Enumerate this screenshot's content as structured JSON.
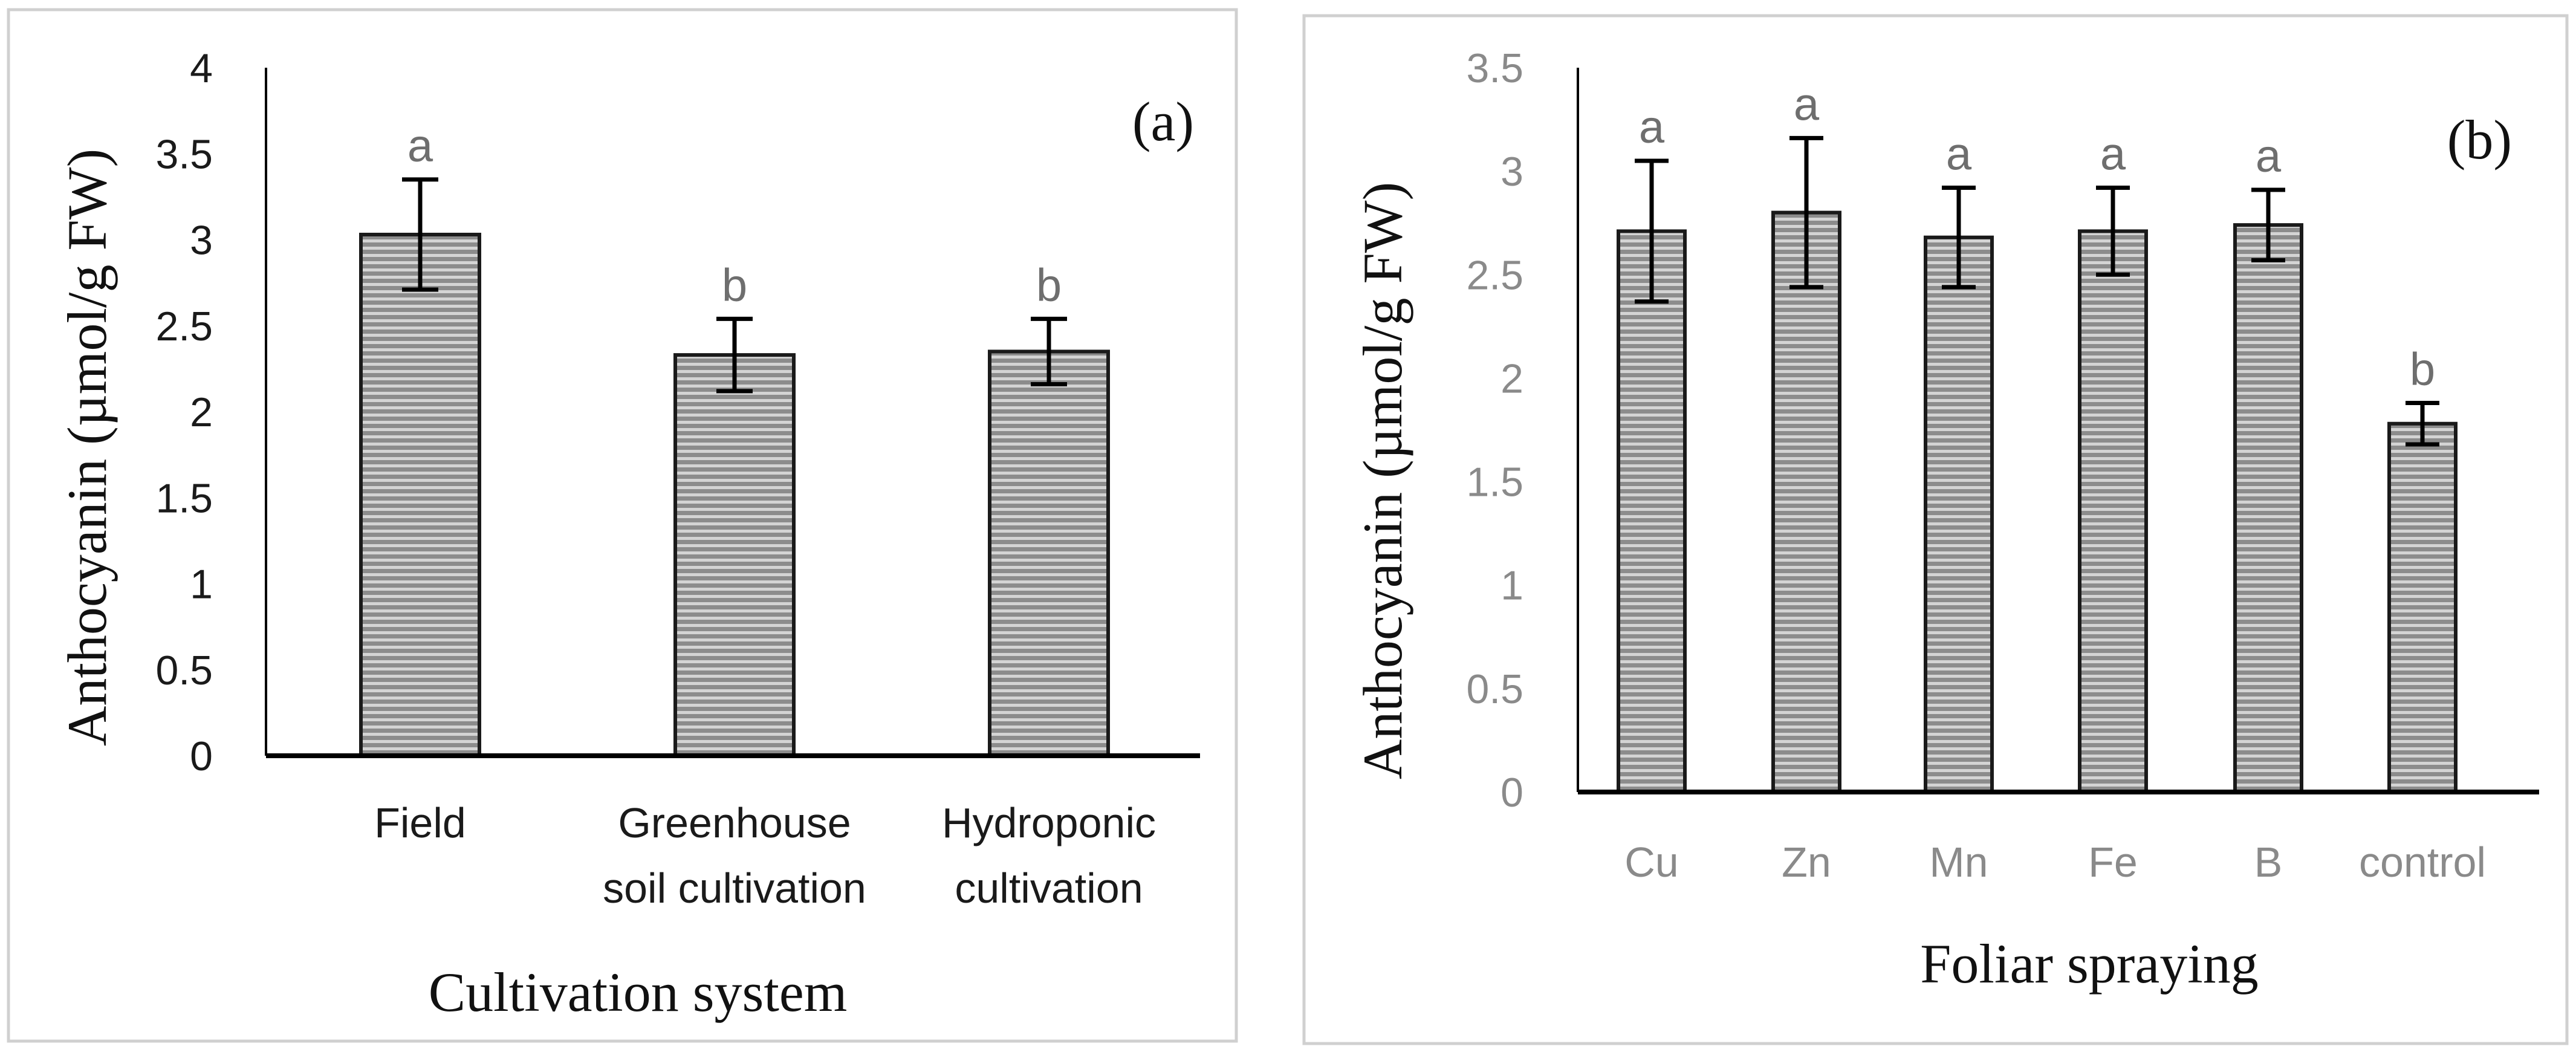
{
  "chart_data": [
    {
      "type": "bar",
      "panel_label": "(a)",
      "title": "",
      "xlabel": "Cultivation system",
      "ylabel": "Anthocyanin (µmol/g FW)",
      "ylim": [
        0,
        4
      ],
      "yticks": [
        "0",
        "0.5",
        "1",
        "1.5",
        "2",
        "2.5",
        "3",
        "3.5",
        "4"
      ],
      "categories": [
        [
          "Field"
        ],
        [
          "Greenhouse",
          "soil cultivation"
        ],
        [
          "Hydroponic",
          "cultivation"
        ]
      ],
      "values": [
        3.03,
        2.33,
        2.35
      ],
      "errors": [
        0.32,
        0.21,
        0.19
      ],
      "significance": [
        "a",
        "b",
        "b"
      ],
      "colors": {
        "bar_fill": "#8c8c8c",
        "bar_line": "#cfcfcf",
        "bar_edge": "#1a1a1a",
        "axis": "#000000",
        "border": "#d0d0d0"
      }
    },
    {
      "type": "bar",
      "panel_label": "(b)",
      "title": "",
      "xlabel": "Foliar spraying",
      "ylabel": "Anthocyanin (µmol/g FW)",
      "ylim": [
        0,
        3.5
      ],
      "yticks": [
        "0",
        "0.5",
        "1",
        "1.5",
        "2",
        "2.5",
        "3",
        "3.5"
      ],
      "categories": [
        [
          "Cu"
        ],
        [
          "Zn"
        ],
        [
          "Mn"
        ],
        [
          "Fe"
        ],
        [
          "B"
        ],
        [
          "control"
        ]
      ],
      "values": [
        2.71,
        2.8,
        2.68,
        2.71,
        2.74,
        1.78
      ],
      "errors": [
        0.34,
        0.36,
        0.24,
        0.21,
        0.17,
        0.1
      ],
      "significance": [
        "a",
        "a",
        "a",
        "a",
        "a",
        "b"
      ],
      "colors": {
        "bar_fill": "#8c8c8c",
        "bar_line": "#cfcfcf",
        "bar_edge": "#1a1a1a",
        "axis": "#000000",
        "border": "#d0d0d0"
      }
    }
  ]
}
